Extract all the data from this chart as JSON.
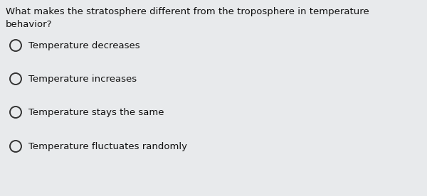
{
  "question_line1": "What makes the stratosphere different from the troposphere in temperature",
  "question_line2": "behavior?",
  "option_display": [
    "Temperature decreases",
    "Temperature increases",
    "Temperature stays the same",
    "Temperature fluctuates randomly"
  ],
  "bg_color": "#e8eaec",
  "text_color": "#111111",
  "question_fontsize": 9.5,
  "option_fontsize": 9.5,
  "circle_color": "#333333"
}
